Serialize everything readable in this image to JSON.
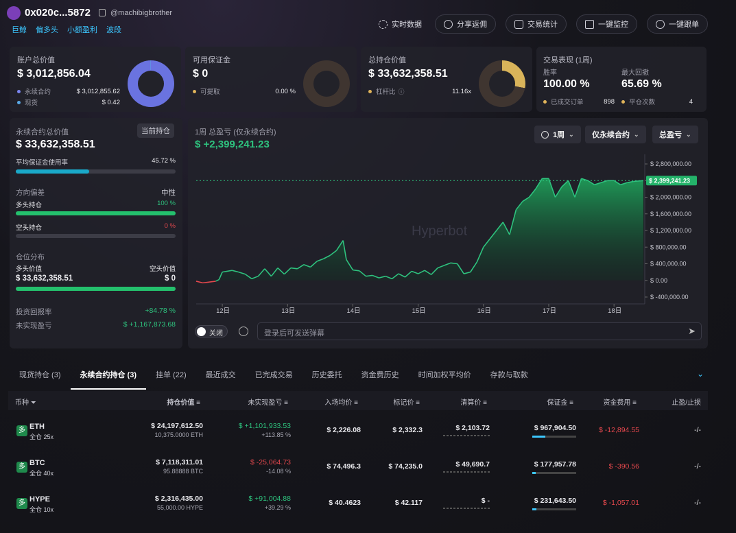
{
  "header": {
    "address": "0x020c...5872",
    "handle": "@machibigbrother",
    "tags": [
      "巨鲸",
      "偏多头",
      "小额盈利",
      "波段"
    ],
    "buttons": {
      "realtime": "实时数据",
      "share": "分享返佣",
      "stats": "交易统计",
      "monitor": "一键监控",
      "follow": "一键跟单"
    }
  },
  "cards": {
    "account": {
      "title": "账户总价值",
      "value": "$ 3,012,856.04",
      "perp_label": "永续合约",
      "perp_value": "$ 3,012,855.62",
      "spot_label": "现货",
      "spot_value": "$ 0.42"
    },
    "margin": {
      "title": "可用保证金",
      "value": "$ 0",
      "withdraw_label": "可提取",
      "withdraw_value": "0.00 %"
    },
    "position": {
      "title": "总持仓价值",
      "value": "$ 33,632,358.51",
      "leverage_label": "杠杆比",
      "leverage_value": "11.16x"
    },
    "performance": {
      "title": "交易表现 (1周)",
      "winrate_label": "胜率",
      "winrate_value": "100.00 %",
      "drawdown_label": "最大回撤",
      "drawdown_value": "65.69 %",
      "orders_label": "已成交订单",
      "orders_value": "898",
      "closes_label": "平仓次数",
      "closes_value": "4"
    }
  },
  "left_panel": {
    "perp_title": "永续合约总价值",
    "current_btn": "当前持仓",
    "perp_value": "$ 33,632,358.51",
    "margin_usage_label": "平均保证金使用率",
    "margin_usage_value": "45.72 %",
    "margin_usage_pct": 45.72,
    "bias_label": "方向偏差",
    "bias_value": "中性",
    "long_label": "多头持仓",
    "long_value": "100 %",
    "short_label": "空头持仓",
    "short_value": "0 %",
    "dist_label": "仓位分布",
    "long_val_label": "多头价值",
    "short_val_label": "空头价值",
    "long_val": "$ 33,632,358.51",
    "short_val": "$ 0",
    "roi_label": "投资回报率",
    "roi_value": "+84.78 %",
    "upnl_label": "未实现盈亏",
    "upnl_value": "$ +1,167,873.68"
  },
  "chart_panel": {
    "title": "1周 总盈亏 (仅永续合约)",
    "value": "$ +2,399,241.23",
    "filters": {
      "period": "1周",
      "scope": "仅永续合约",
      "metric": "总盈亏"
    },
    "current_label": "$ 2,399,241.23",
    "toggle_label": "关闭",
    "danmaku_placeholder": "登录后可发送弹幕",
    "watermark": "Hyperbot"
  },
  "chart_data": {
    "type": "area",
    "title": "1周 总盈亏 (仅永续合约)",
    "x_ticks": [
      "12日",
      "13日",
      "14日",
      "15日",
      "16日",
      "17日",
      "18日"
    ],
    "y_ticks": [
      "$ 2,800,000.00",
      "$ 2,400,000.00",
      "$ 2,000,000.00",
      "$ 1,600,000.00",
      "$ 1,200,000.00",
      "$ 800,000.00",
      "$ 400,000.00",
      "$ 0.00",
      "$ -400,000.00"
    ],
    "ylim": [
      -400000,
      2800000
    ],
    "x": [
      11.6,
      11.7,
      11.8,
      11.9,
      11.95,
      12.0,
      12.15,
      12.25,
      12.35,
      12.45,
      12.55,
      12.65,
      12.75,
      12.85,
      12.95,
      13.05,
      13.15,
      13.25,
      13.35,
      13.45,
      13.55,
      13.65,
      13.75,
      13.85,
      13.9,
      14.0,
      14.1,
      14.2,
      14.3,
      14.4,
      14.5,
      14.6,
      14.7,
      14.8,
      14.9,
      15.0,
      15.1,
      15.2,
      15.3,
      15.4,
      15.5,
      15.6,
      15.7,
      15.8,
      15.9,
      16.0,
      16.1,
      16.2,
      16.3,
      16.4,
      16.5,
      16.6,
      16.7,
      16.8,
      16.9,
      17.0,
      17.1,
      17.2,
      17.3,
      17.4,
      17.5,
      17.6,
      17.7,
      17.8,
      17.9,
      18.0,
      18.1,
      18.2,
      18.3,
      18.45
    ],
    "values": [
      -20000,
      -60000,
      -40000,
      -20000,
      20000,
      200000,
      240000,
      200000,
      150000,
      40000,
      100000,
      280000,
      100000,
      300000,
      150000,
      300000,
      280000,
      380000,
      320000,
      460000,
      520000,
      600000,
      720000,
      960000,
      500000,
      250000,
      230000,
      100000,
      120000,
      60000,
      100000,
      40000,
      160000,
      80000,
      220000,
      160000,
      240000,
      140000,
      300000,
      360000,
      420000,
      400000,
      160000,
      200000,
      440000,
      800000,
      1000000,
      1200000,
      1400000,
      1100000,
      1700000,
      1900000,
      2000000,
      2200000,
      2450000,
      2450000,
      2000000,
      2250000,
      2400000,
      2000000,
      2450000,
      2400000,
      2300000,
      2350000,
      2399241,
      2400000,
      2300000,
      2350000,
      2380000,
      2399241
    ],
    "negative_color": "#e5484d",
    "positive_color": "#2ec27e"
  },
  "table": {
    "tabs": [
      "现货持仓 (3)",
      "永续合约持仓 (3)",
      "挂单 (22)",
      "最近成交",
      "已完成交易",
      "历史委托",
      "资金费历史",
      "时间加权平均价",
      "存款与取款"
    ],
    "headers": [
      "币种",
      "持仓价值",
      "未实现盈亏",
      "入场均价",
      "标记价",
      "清算价",
      "保证金",
      "资金费用",
      "止盈/止损"
    ],
    "rows": [
      {
        "side": "多",
        "coin": "ETH",
        "mode": "全仓 25x",
        "value": "$ 24,197,612.50",
        "size": "10,375.0000 ETH",
        "pnl": "$ +1,101,933.53",
        "pnl_pct": "+113.85 %",
        "entry": "$ 2,226.08",
        "mark": "$ 2,332.3",
        "liq": "$ 2,103.72",
        "margin": "$ 967,904.50",
        "funding": "$ -12,894.55",
        "tpsl": "-/-",
        "margin_fill": 0.3
      },
      {
        "side": "多",
        "coin": "BTC",
        "mode": "全仓 40x",
        "value": "$ 7,118,311.01",
        "size": "95.88888 BTC",
        "pnl": "$ -25,064.73",
        "pnl_pct": "-14.08 %",
        "entry": "$ 74,496.3",
        "mark": "$ 74,235.0",
        "liq": "$ 49,690.7",
        "margin": "$ 177,957.78",
        "funding": "$ -390.56",
        "tpsl": "-/-",
        "margin_fill": 0.08
      },
      {
        "side": "多",
        "coin": "HYPE",
        "mode": "全仓 10x",
        "value": "$ 2,316,435.00",
        "size": "55,000.00 HYPE",
        "pnl": "$ +91,004.88",
        "pnl_pct": "+39.29 %",
        "entry": "$ 40.4623",
        "mark": "$ 42.117",
        "liq": "$ -",
        "margin": "$ 231,643.50",
        "funding": "$ -1,057.01",
        "tpsl": "-/-",
        "margin_fill": 0.1
      }
    ]
  }
}
